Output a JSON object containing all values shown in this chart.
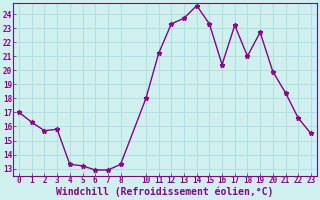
{
  "x": [
    0,
    1,
    2,
    3,
    4,
    5,
    6,
    7,
    8,
    10,
    11,
    12,
    13,
    14,
    15,
    16,
    17,
    18,
    19,
    20,
    21,
    22,
    23
  ],
  "y": [
    17,
    16.3,
    15.7,
    15.8,
    13.3,
    13.2,
    12.9,
    12.9,
    13.3,
    18,
    21.2,
    23.3,
    23.7,
    24.6,
    23.3,
    20.4,
    23.2,
    21.0,
    22.7,
    19.9,
    18.4,
    16.6,
    15.5
  ],
  "line_color": "#880088",
  "marker": "*",
  "marker_color": "#880088",
  "bg_color": "#d0f0f0",
  "grid_color": "#aadddd",
  "xlabel": "Windchill (Refroidissement éolien,°C)",
  "xlabel_color": "#880088",
  "xlim": [
    -0.5,
    23.5
  ],
  "ylim": [
    12.5,
    24.8
  ],
  "yticks": [
    13,
    14,
    15,
    16,
    17,
    18,
    19,
    20,
    21,
    22,
    23,
    24
  ],
  "xticks": [
    0,
    1,
    2,
    3,
    4,
    5,
    6,
    7,
    8,
    10,
    11,
    12,
    13,
    14,
    15,
    16,
    17,
    18,
    19,
    20,
    21,
    22,
    23
  ],
  "tick_color": "#880088",
  "tick_fontsize": 5.5,
  "xlabel_fontsize": 7.0,
  "linewidth": 1.0,
  "markersize": 3.5
}
